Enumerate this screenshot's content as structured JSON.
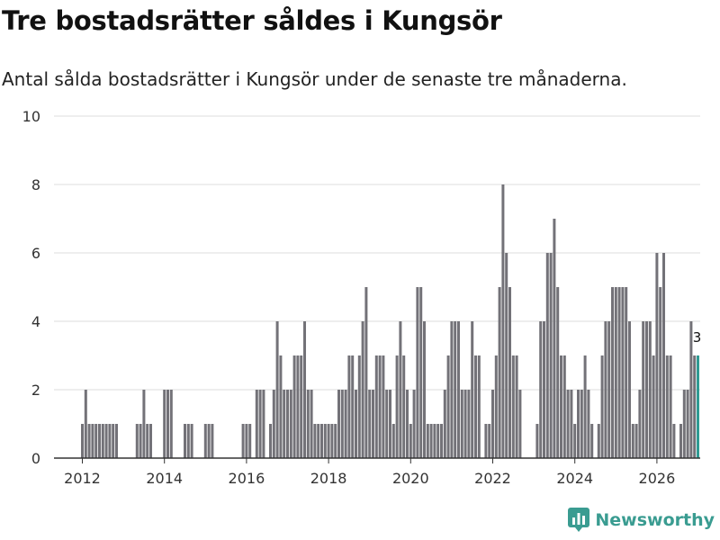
{
  "title": "Tre bostadsrätter såldes i Kungsör",
  "subtitle": "Antal sålda bostadsrätter i Kungsör under de senaste tre månaderna.",
  "brand": {
    "name": "Newsworthy",
    "icon": "newsworthy-logo-icon"
  },
  "colors": {
    "bar": "#737278",
    "highlight": "#2f9b93",
    "grid": "#dddddd",
    "axis": "#333333",
    "brand": "#3a9c91"
  },
  "chart_data": {
    "type": "bar",
    "title": "Tre bostadsrätter såldes i Kungsör",
    "xlabel": "",
    "ylabel": "",
    "ylim": [
      0,
      10
    ],
    "yticks": [
      0,
      2,
      4,
      6,
      8,
      10
    ],
    "xticks": [
      "2012",
      "2014",
      "2016",
      "2018",
      "2020",
      "2022",
      "2024",
      "2026"
    ],
    "start": "2012-01",
    "end": "2026-03",
    "highlight_label": "3",
    "values": [
      1,
      2,
      1,
      1,
      1,
      1,
      1,
      1,
      1,
      1,
      1,
      0,
      0,
      0,
      0,
      0,
      1,
      1,
      2,
      1,
      1,
      0,
      0,
      0,
      2,
      2,
      2,
      0,
      0,
      0,
      1,
      1,
      1,
      0,
      0,
      0,
      1,
      1,
      1,
      0,
      0,
      0,
      0,
      0,
      0,
      0,
      0,
      1,
      1,
      1,
      0,
      2,
      2,
      2,
      0,
      1,
      2,
      4,
      3,
      2,
      2,
      2,
      3,
      3,
      3,
      4,
      2,
      2,
      1,
      1,
      1,
      1,
      1,
      1,
      1,
      2,
      2,
      2,
      3,
      3,
      2,
      3,
      4,
      5,
      2,
      2,
      3,
      3,
      3,
      2,
      2,
      1,
      3,
      4,
      3,
      2,
      1,
      2,
      5,
      5,
      4,
      1,
      1,
      1,
      1,
      1,
      2,
      3,
      4,
      4,
      4,
      2,
      2,
      2,
      4,
      3,
      3,
      0,
      1,
      1,
      2,
      3,
      5,
      8,
      6,
      5,
      3,
      3,
      2,
      0,
      0,
      0,
      0,
      1,
      4,
      4,
      6,
      6,
      7,
      5,
      3,
      3,
      2,
      2,
      1,
      2,
      2,
      3,
      2,
      1,
      0,
      1,
      3,
      4,
      4,
      5,
      5,
      5,
      5,
      5,
      4,
      1,
      1,
      2,
      4,
      4,
      4,
      3,
      6,
      5,
      6,
      3,
      3,
      1,
      0,
      1,
      2,
      2,
      4,
      3,
      3
    ]
  }
}
